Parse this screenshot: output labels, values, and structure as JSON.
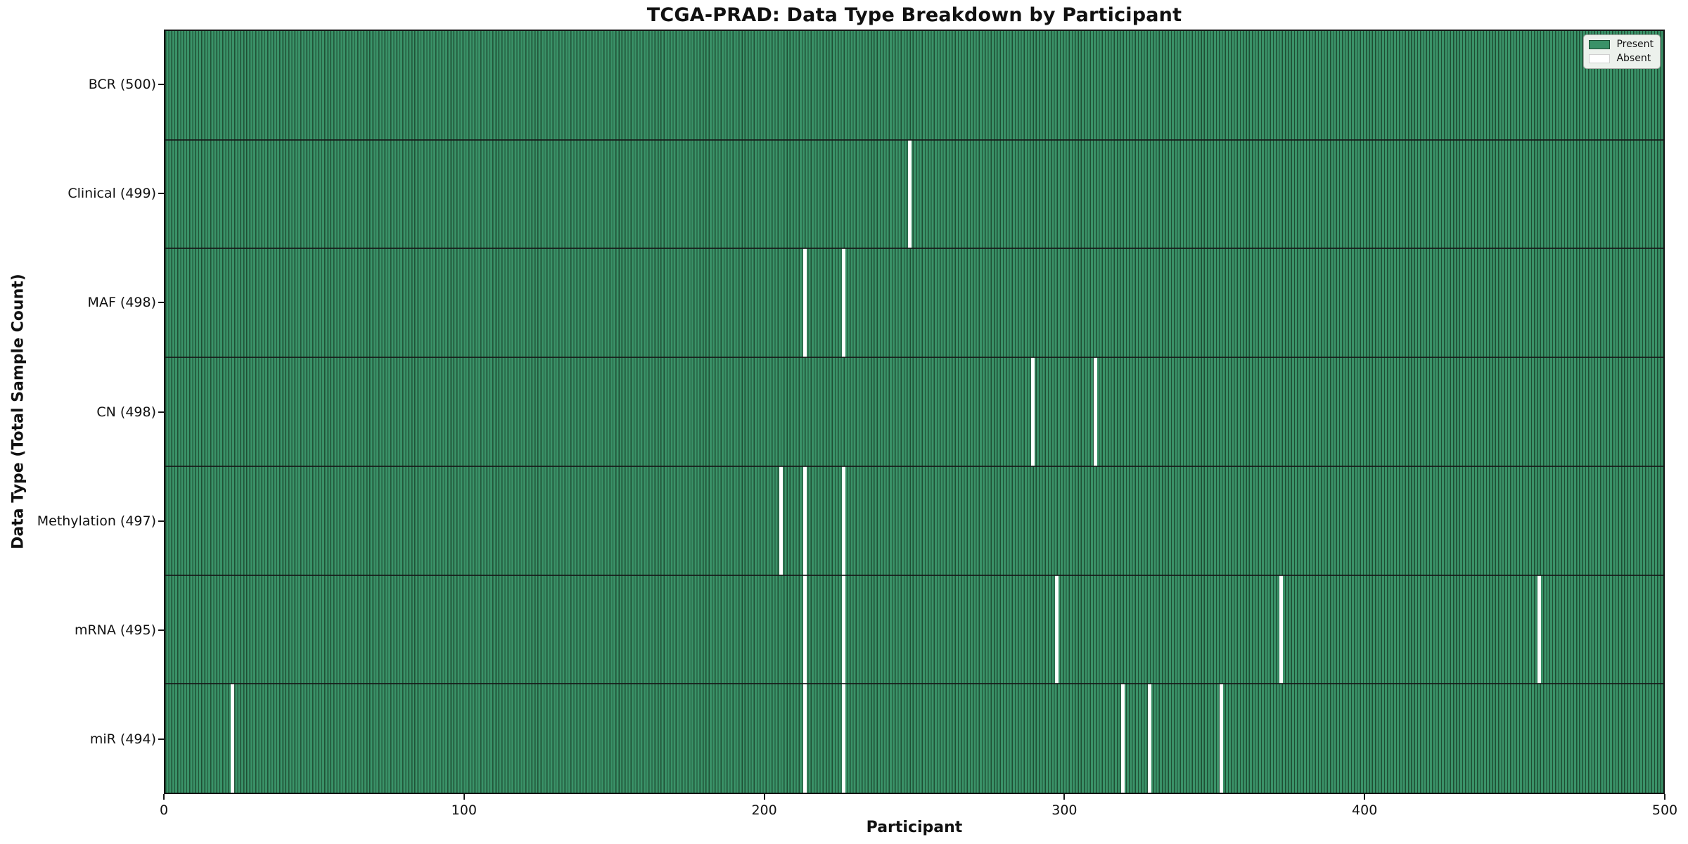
{
  "title": "TCGA-PRAD: Data Type Breakdown by Participant",
  "chart_data": {
    "type": "heatmap",
    "title": "TCGA-PRAD: Data Type Breakdown by Participant",
    "xlabel": "Participant",
    "ylabel": "Data Type (Total Sample Count)",
    "x_range": [
      0,
      500
    ],
    "x_ticks": [
      0,
      100,
      200,
      300,
      400,
      500
    ],
    "n_participants": 500,
    "grid": false,
    "legend_position": "upper right",
    "legend": [
      {
        "label": "Present",
        "color": "#3a9268"
      },
      {
        "label": "Absent",
        "color": "#ffffff"
      }
    ],
    "colors": {
      "present": "#3a9268",
      "bar_edge": "#1e4e33",
      "absent": "#ffffff",
      "separator": "#161616",
      "legend_bg": "#ecf1ec"
    },
    "rows": [
      {
        "label": "BCR (500)",
        "data_type": "BCR",
        "present_count": 500,
        "absent_participants": []
      },
      {
        "label": "Clinical (499)",
        "data_type": "Clinical",
        "present_count": 499,
        "absent_participants": [
          248
        ]
      },
      {
        "label": "MAF (498)",
        "data_type": "MAF",
        "present_count": 498,
        "absent_participants": [
          213,
          226
        ]
      },
      {
        "label": "CN (498)",
        "data_type": "CN",
        "present_count": 498,
        "absent_participants": [
          289,
          310
        ]
      },
      {
        "label": "Methylation (497)",
        "data_type": "Methylation",
        "present_count": 497,
        "absent_participants": [
          205,
          213,
          226
        ]
      },
      {
        "label": "mRNA (495)",
        "data_type": "mRNA",
        "present_count": 495,
        "absent_participants": [
          213,
          226,
          297,
          372,
          458
        ]
      },
      {
        "label": "miR (494)",
        "data_type": "miR",
        "present_count": 494,
        "absent_participants": [
          22,
          213,
          226,
          319,
          328,
          352
        ]
      }
    ]
  }
}
